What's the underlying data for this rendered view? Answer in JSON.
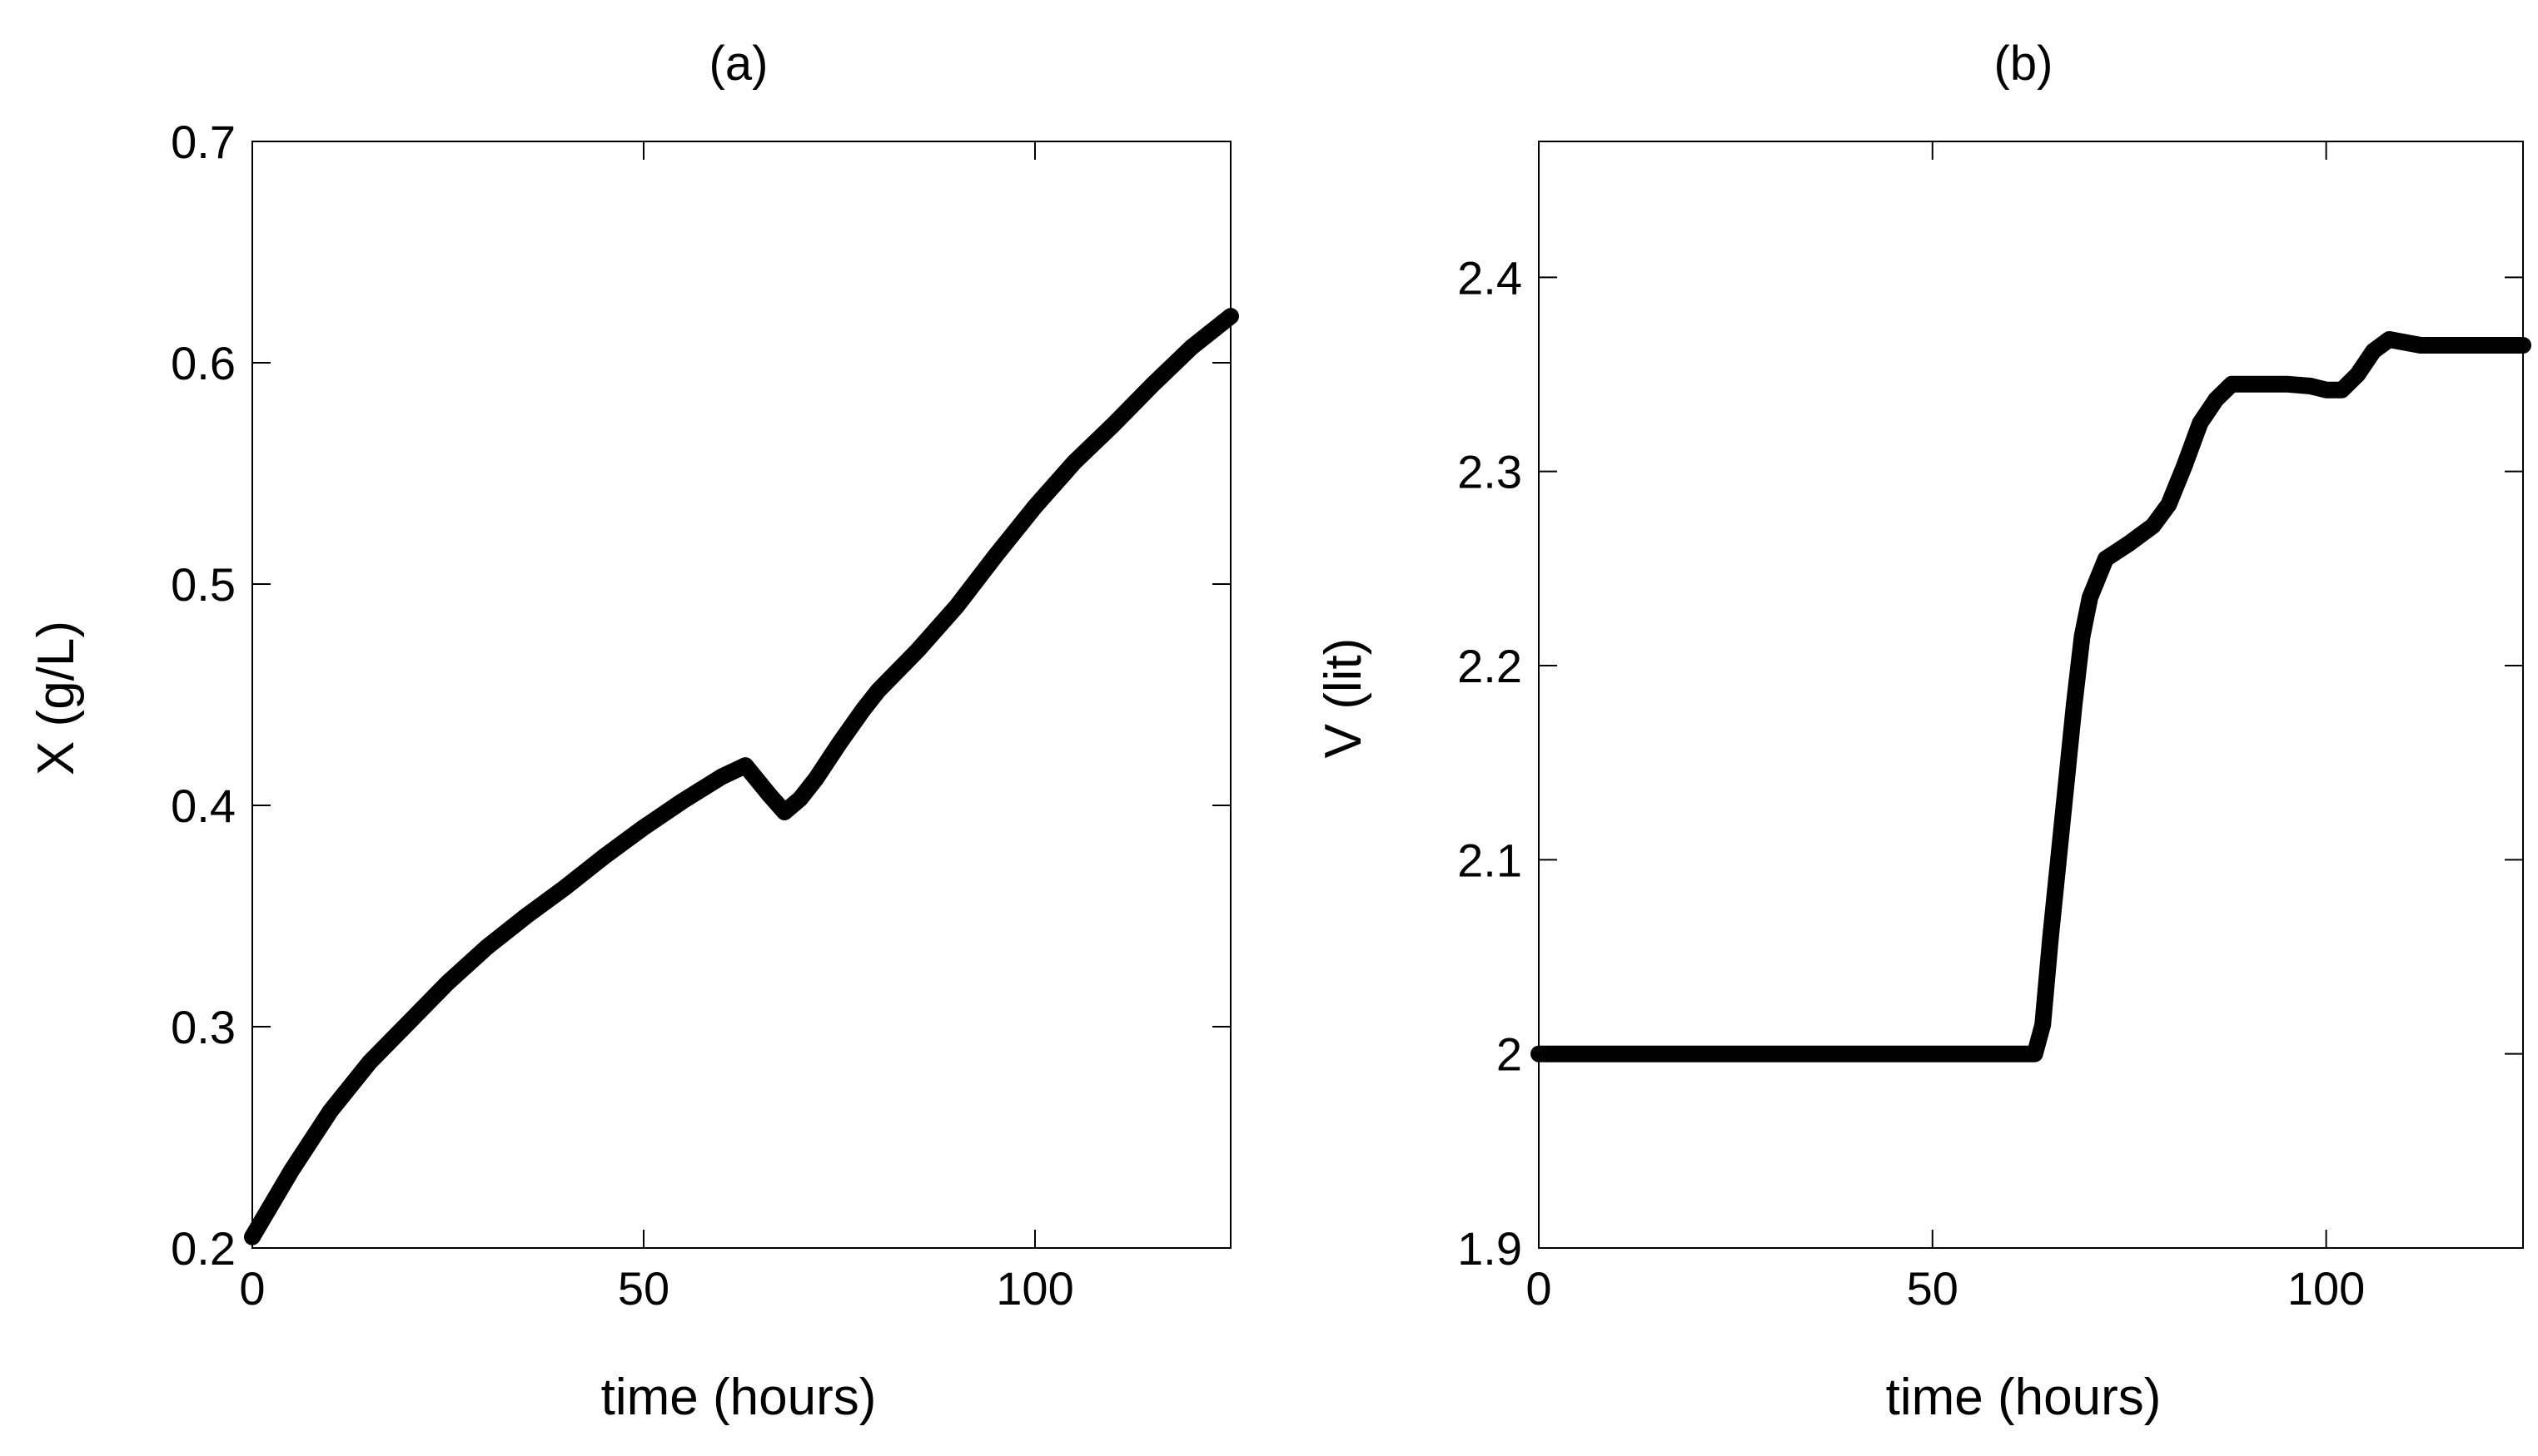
{
  "chart_data": [
    {
      "type": "line",
      "title": "(a)",
      "xlabel": "time (hours)",
      "ylabel": "X (g/L)",
      "xlim": [
        0,
        125
      ],
      "ylim": [
        0.2,
        0.7
      ],
      "xticks": [
        0,
        50,
        100
      ],
      "xtick_labels": [
        "0",
        "50",
        "100"
      ],
      "yticks": [
        0.2,
        0.3,
        0.4,
        0.5,
        0.6,
        0.7
      ],
      "ytick_labels": [
        "0.2",
        "0.3",
        "0.4",
        "0.5",
        "0.6",
        "0.7"
      ],
      "series": [
        {
          "name": "X",
          "color": "#000000",
          "x": [
            0,
            5,
            10,
            15,
            20,
            25,
            30,
            35,
            40,
            45,
            50,
            55,
            60,
            63,
            66,
            68,
            70,
            72,
            75,
            78,
            80,
            85,
            90,
            95,
            100,
            105,
            110,
            115,
            120,
            125
          ],
          "y": [
            0.205,
            0.235,
            0.262,
            0.284,
            0.302,
            0.32,
            0.336,
            0.35,
            0.363,
            0.377,
            0.39,
            0.402,
            0.413,
            0.418,
            0.405,
            0.397,
            0.403,
            0.412,
            0.428,
            0.443,
            0.452,
            0.47,
            0.49,
            0.513,
            0.535,
            0.555,
            0.572,
            0.59,
            0.607,
            0.621
          ]
        }
      ]
    },
    {
      "type": "line",
      "title": "(b)",
      "xlabel": "time (hours)",
      "ylabel": "V (lit)",
      "xlim": [
        0,
        125
      ],
      "ylim": [
        1.9,
        2.47
      ],
      "xticks": [
        0,
        50,
        100
      ],
      "xtick_labels": [
        "0",
        "50",
        "100"
      ],
      "yticks": [
        1.9,
        2.0,
        2.1,
        2.2,
        2.3,
        2.4
      ],
      "ytick_labels": [
        "1.9",
        "2",
        "2.1",
        "2.2",
        "2.3",
        "2.4"
      ],
      "series": [
        {
          "name": "V",
          "color": "#000000",
          "x": [
            0,
            63,
            64,
            65,
            66,
            67,
            68,
            69,
            70,
            72,
            75,
            78,
            80,
            82,
            84,
            86,
            88,
            95,
            98,
            100,
            102,
            104,
            106,
            108,
            112,
            125
          ],
          "y": [
            2.0,
            2.0,
            2.015,
            2.06,
            2.1,
            2.14,
            2.18,
            2.215,
            2.235,
            2.255,
            2.263,
            2.272,
            2.283,
            2.303,
            2.325,
            2.337,
            2.345,
            2.345,
            2.344,
            2.342,
            2.342,
            2.35,
            2.362,
            2.368,
            2.365,
            2.365
          ]
        }
      ]
    }
  ]
}
